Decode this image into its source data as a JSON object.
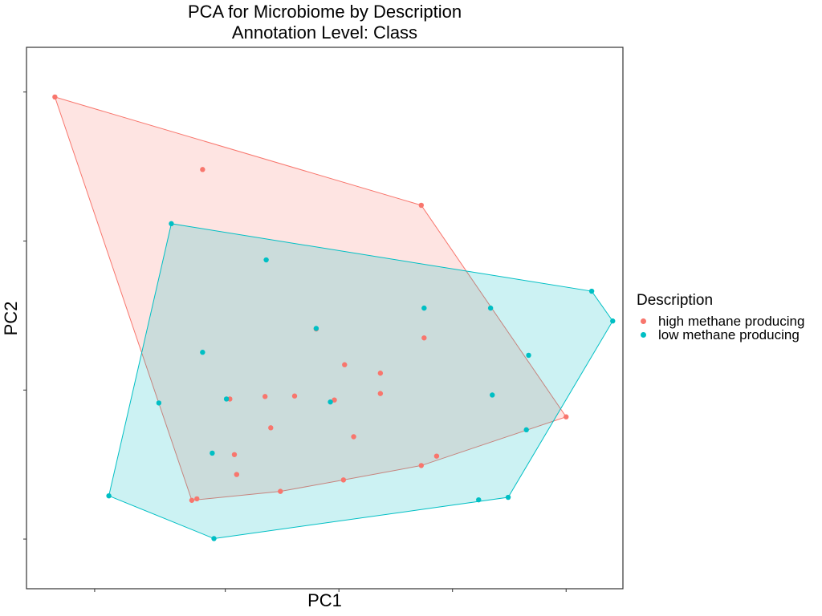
{
  "chart_data": {
    "type": "scatter",
    "title_lines": [
      "PCA for Microbiome by Description",
      "Annotation Level: Class"
    ],
    "xlabel": "PC1",
    "ylabel": "PC2",
    "xlim": [
      -0.55,
      0.5
    ],
    "ylim": [
      -0.55,
      0.54
    ],
    "x_ticks": [
      -0.43,
      -0.2,
      0.0,
      0.2,
      0.4
    ],
    "y_ticks": [
      -0.45,
      -0.15,
      0.15,
      0.45
    ],
    "tick_labels_shown": false,
    "grid": false,
    "hulls": true,
    "legend_title": "Description",
    "legend_position": "right",
    "series": [
      {
        "name": "high methane producing",
        "color": "#F8766D",
        "points": [
          [
            -0.5,
            0.44
          ],
          [
            -0.24,
            0.294
          ],
          [
            0.145,
            0.222
          ],
          [
            0.4,
            -0.204
          ],
          [
            0.15,
            -0.045
          ],
          [
            -0.04,
            -0.027
          ],
          [
            0.073,
            -0.116
          ],
          [
            0.01,
            -0.099
          ],
          [
            0.073,
            -0.157
          ],
          [
            -0.078,
            -0.162
          ],
          [
            -0.13,
            -0.163
          ],
          [
            -0.192,
            -0.168
          ],
          [
            -0.008,
            -0.17
          ],
          [
            -0.12,
            -0.226
          ],
          [
            0.026,
            -0.244
          ],
          [
            -0.184,
            -0.28
          ],
          [
            0.172,
            -0.283
          ],
          [
            0.145,
            -0.302
          ],
          [
            -0.18,
            -0.32
          ],
          [
            0.008,
            -0.331
          ],
          [
            -0.103,
            -0.354
          ],
          [
            -0.25,
            -0.369
          ],
          [
            -0.259,
            -0.372
          ]
        ]
      },
      {
        "name": "low methane producing",
        "color": "#00BFC4",
        "points": [
          [
            -0.295,
            0.185
          ],
          [
            -0.128,
            0.112
          ],
          [
            0.445,
            0.049
          ],
          [
            0.482,
            -0.011
          ],
          [
            -0.04,
            -0.026
          ],
          [
            0.15,
            0.015
          ],
          [
            0.267,
            0.015
          ],
          [
            -0.24,
            -0.074
          ],
          [
            0.334,
            -0.08
          ],
          [
            0.27,
            -0.16
          ],
          [
            -0.198,
            -0.168
          ],
          [
            -0.317,
            -0.176
          ],
          [
            -0.015,
            -0.174
          ],
          [
            0.33,
            -0.23
          ],
          [
            -0.223,
            -0.277
          ],
          [
            -0.405,
            -0.363
          ],
          [
            0.298,
            -0.366
          ],
          [
            0.246,
            -0.371
          ],
          [
            -0.22,
            -0.449
          ]
        ]
      }
    ]
  }
}
